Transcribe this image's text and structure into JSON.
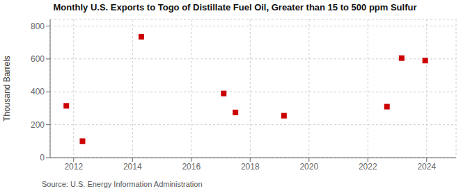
{
  "chart_data": {
    "type": "scatter",
    "title": "Monthly U.S. Exports to Togo of Distillate Fuel Oil, Greater than 15 to 500 ppm Sulfur",
    "ylabel": "Thousand Barrels",
    "annotation": "Source: U.S. Energy Information Administration",
    "x": [
      2011.75,
      2012.3,
      2014.3,
      2017.1,
      2017.5,
      2019.15,
      2022.65,
      2023.15,
      2023.95
    ],
    "values": [
      315,
      100,
      735,
      390,
      275,
      255,
      310,
      605,
      590
    ],
    "color": "#cc0000",
    "marker": "square",
    "xlim": [
      2011.2,
      2025.0
    ],
    "ylim": [
      0,
      840
    ],
    "xticks": [
      2012,
      2014,
      2016,
      2018,
      2020,
      2022,
      2024
    ],
    "yticks": [
      0,
      200,
      400,
      600,
      800
    ],
    "grid": true
  }
}
